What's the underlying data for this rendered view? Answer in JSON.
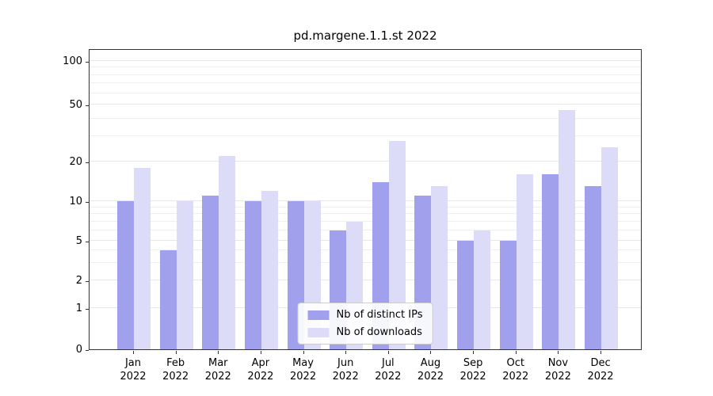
{
  "chart_data": {
    "type": "bar",
    "title": "pd.margene.1.1.st 2022",
    "categories": [
      "Jan 2022",
      "Feb 2022",
      "Mar 2022",
      "Apr 2022",
      "May 2022",
      "Jun 2022",
      "Jul 2022",
      "Aug 2022",
      "Sep 2022",
      "Oct 2022",
      "Nov 2022",
      "Dec 2022"
    ],
    "category_month": [
      "Jan",
      "Feb",
      "Mar",
      "Apr",
      "May",
      "Jun",
      "Jul",
      "Aug",
      "Sep",
      "Oct",
      "Nov",
      "Dec"
    ],
    "category_year": [
      "2022",
      "2022",
      "2022",
      "2022",
      "2022",
      "2022",
      "2022",
      "2022",
      "2022",
      "2022",
      "2022",
      "2022"
    ],
    "series": [
      {
        "name": "Nb of distinct IPs",
        "color": "#a0a0ec",
        "values": [
          10,
          4,
          11,
          10,
          10,
          6,
          14,
          11,
          5,
          5,
          16,
          13
        ]
      },
      {
        "name": "Nb of downloads",
        "color": "#dcdcf8",
        "values": [
          18,
          10,
          22,
          12,
          10,
          7,
          28,
          13,
          6,
          16,
          46,
          25
        ]
      }
    ],
    "yscale": "symlog",
    "ylim": [
      0,
      110
    ],
    "yticks": [
      0,
      1,
      2,
      5,
      10,
      20,
      50,
      100
    ],
    "yticks_minor": [
      3,
      4,
      6,
      7,
      8,
      9,
      30,
      40,
      60,
      70,
      80,
      90
    ],
    "grid": true,
    "legend_position": "lower center"
  },
  "colors": {
    "bar_ips": "#a0a0ec",
    "bar_downloads": "#dcdcf8",
    "grid": "#e7e7e7",
    "axis": "#333333",
    "legend_border": "#cccccc",
    "background": "#ffffff"
  }
}
